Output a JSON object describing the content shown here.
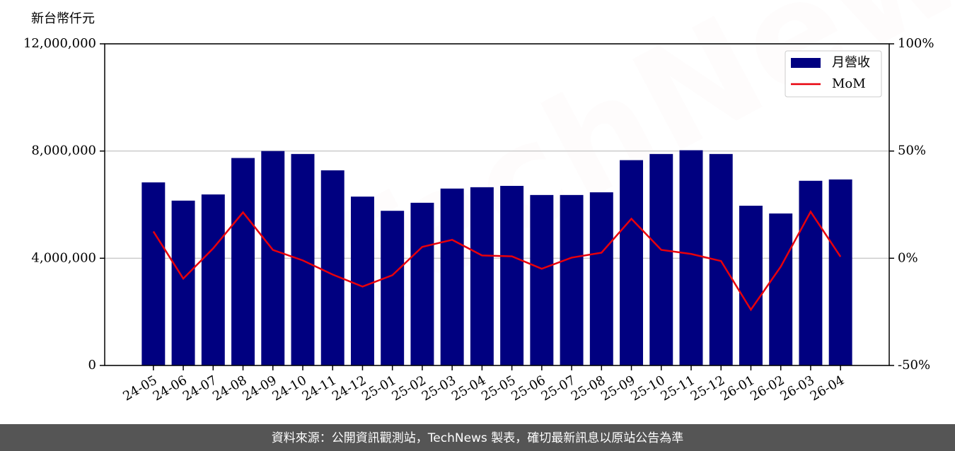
{
  "chart_data": {
    "type": "bar",
    "y_label": "新台幣仟元",
    "watermark": "TechNews",
    "source_note": "資料來源：公開資訊觀測站，TechNews 製表，確切最新訊息以原站公告為準",
    "categories": [
      "24-05",
      "24-06",
      "24-07",
      "24-08",
      "24-09",
      "24-10",
      "24-11",
      "24-12",
      "25-01",
      "25-02",
      "25-03",
      "25-04",
      "25-05",
      "25-06",
      "25-07",
      "25-08",
      "25-09",
      "25-10",
      "25-11",
      "25-12",
      "26-01",
      "26-02",
      "26-03",
      "26-04"
    ],
    "series": [
      {
        "name": "月營收",
        "type": "bar",
        "color": "#000080",
        "axis": "y",
        "values": [
          6830000,
          6150000,
          6380000,
          7740000,
          8000000,
          7890000,
          7280000,
          6300000,
          5770000,
          6070000,
          6600000,
          6650000,
          6700000,
          6360000,
          6360000,
          6460000,
          7660000,
          7890000,
          8030000,
          7890000,
          5960000,
          5670000,
          6890000,
          6940000
        ]
      },
      {
        "name": "MoM",
        "type": "line",
        "color": "#e8000b",
        "axis": "y2",
        "values": [
          12.5,
          -9.5,
          4.6,
          21.4,
          3.9,
          -1.0,
          -7.6,
          -13.2,
          -7.9,
          5.3,
          8.6,
          1.3,
          0.9,
          -4.9,
          0.3,
          2.6,
          18.4,
          3.9,
          2.0,
          -1.3,
          -24.0,
          -3.9,
          21.7,
          0.7
        ]
      }
    ],
    "ylim": [
      0,
      12000000
    ],
    "yticks": [
      0,
      {
        "value": 4000000,
        "label": "4,000,000"
      },
      {
        "value": 8000000,
        "label": "8,000,000"
      },
      {
        "value": 12000000,
        "label": "12,000,000"
      }
    ],
    "y2lim": [
      -50,
      100
    ],
    "y2ticks": [
      {
        "value": -50,
        "label": "-50%"
      },
      {
        "value": 0,
        "label": "0%"
      },
      {
        "value": 50,
        "label": "50%"
      },
      {
        "value": 100,
        "label": "100%"
      }
    ],
    "grid": true,
    "legend": "upper right"
  }
}
